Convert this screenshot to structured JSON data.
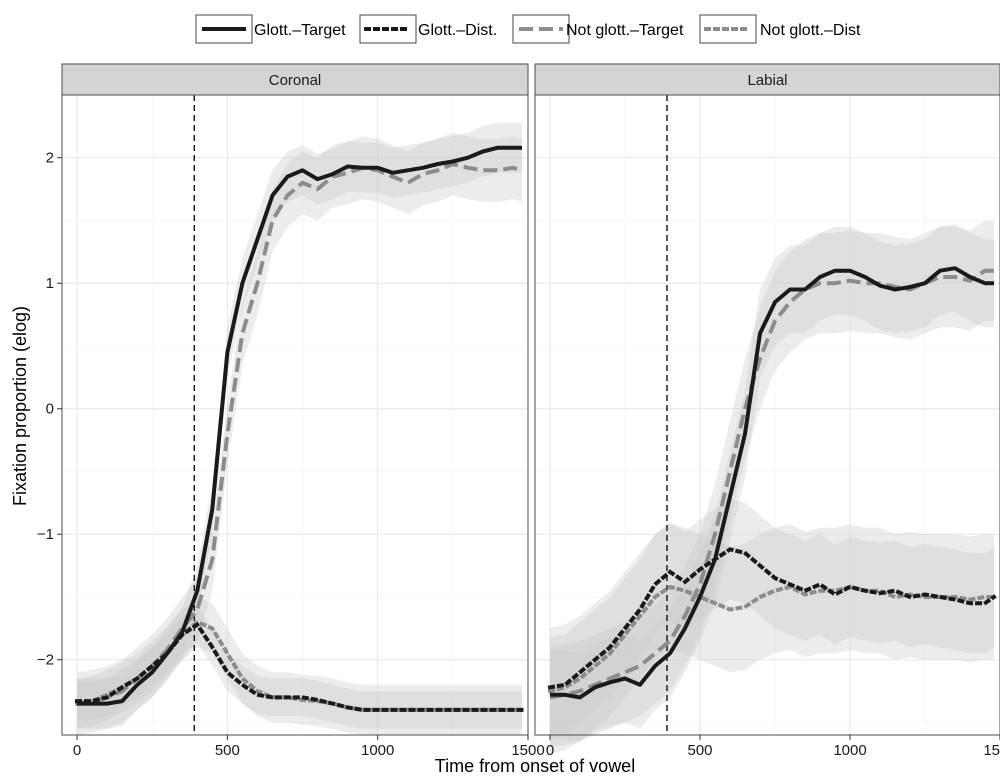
{
  "chart_data": {
    "type": "line",
    "xlabel": "Time from onset of vowel",
    "ylabel": "Fixation proportion (elog)",
    "xlim": [
      -50,
      1500
    ],
    "ylim": [
      -2.6,
      2.5
    ],
    "x_ticks": [
      0,
      500,
      1000,
      1500
    ],
    "y_ticks": [
      -2,
      -1,
      0,
      1,
      2
    ],
    "x_tick_labels": [
      "0",
      "500",
      "1000",
      "1500"
    ],
    "y_tick_labels": [
      "−2",
      "−1",
      "0",
      "1",
      "2"
    ],
    "grid": true,
    "legend_position": "top",
    "legend": [
      {
        "label": "Glott.–Target",
        "color": "#1a1a1a",
        "style": "solid"
      },
      {
        "label": "Glott.–Dist.",
        "color": "#1a1a1a",
        "style": "dotted"
      },
      {
        "label": "Not glott.–Target",
        "color": "#8c8c8c",
        "style": "dashed"
      },
      {
        "label": "Not glott.–Dist",
        "color": "#8c8c8c",
        "style": "dotted"
      }
    ],
    "panels": [
      {
        "title": "Coronal",
        "vline_x": 390,
        "series": [
          {
            "name": "Glott.–Target",
            "x": [
              0,
              50,
              100,
              150,
              200,
              250,
              300,
              350,
              400,
              450,
              500,
              550,
              600,
              650,
              700,
              750,
              800,
              850,
              900,
              950,
              1000,
              1050,
              1100,
              1150,
              1200,
              1250,
              1300,
              1350,
              1400,
              1450,
              1480
            ],
            "y": [
              -2.35,
              -2.35,
              -2.35,
              -2.33,
              -2.2,
              -2.1,
              -1.95,
              -1.78,
              -1.45,
              -0.8,
              0.45,
              1.0,
              1.35,
              1.7,
              1.85,
              1.9,
              1.83,
              1.87,
              1.93,
              1.92,
              1.92,
              1.88,
              1.9,
              1.92,
              1.95,
              1.97,
              2.0,
              2.05,
              2.08,
              2.08,
              2.08
            ],
            "band": 0.2
          },
          {
            "name": "Glott.–Dist.",
            "x": [
              0,
              50,
              100,
              150,
              200,
              250,
              300,
              350,
              400,
              450,
              500,
              550,
              600,
              650,
              700,
              750,
              800,
              850,
              900,
              950,
              1000,
              1050,
              1100,
              1150,
              1200,
              1250,
              1300,
              1350,
              1400,
              1450,
              1480
            ],
            "y": [
              -2.33,
              -2.33,
              -2.3,
              -2.22,
              -2.15,
              -2.05,
              -1.95,
              -1.8,
              -1.72,
              -1.9,
              -2.1,
              -2.2,
              -2.28,
              -2.3,
              -2.3,
              -2.3,
              -2.32,
              -2.35,
              -2.38,
              -2.4,
              -2.4,
              -2.4,
              -2.4,
              -2.4,
              -2.4,
              -2.4,
              -2.4,
              -2.4,
              -2.4,
              -2.4,
              -2.4
            ],
            "band": 0.15
          },
          {
            "name": "Not glott.–Target",
            "x": [
              0,
              50,
              100,
              150,
              200,
              250,
              300,
              350,
              400,
              450,
              500,
              550,
              600,
              650,
              700,
              750,
              800,
              850,
              900,
              950,
              1000,
              1050,
              1100,
              1150,
              1200,
              1250,
              1300,
              1350,
              1400,
              1450,
              1480
            ],
            "y": [
              -2.35,
              -2.33,
              -2.3,
              -2.25,
              -2.15,
              -2.05,
              -1.92,
              -1.75,
              -1.6,
              -1.2,
              -0.2,
              0.6,
              1.0,
              1.5,
              1.7,
              1.8,
              1.75,
              1.85,
              1.88,
              1.92,
              1.9,
              1.85,
              1.8,
              1.87,
              1.9,
              1.95,
              1.92,
              1.9,
              1.9,
              1.92,
              1.9
            ],
            "band": 0.25
          },
          {
            "name": "Not glott.–Dist",
            "x": [
              0,
              50,
              100,
              150,
              200,
              250,
              300,
              350,
              400,
              450,
              500,
              550,
              600,
              650,
              700,
              750,
              800,
              850,
              900,
              950,
              1000,
              1050,
              1100,
              1150,
              1200,
              1250,
              1300,
              1350,
              1400,
              1450,
              1480
            ],
            "y": [
              -2.35,
              -2.33,
              -2.28,
              -2.22,
              -2.15,
              -2.05,
              -1.93,
              -1.8,
              -1.7,
              -1.75,
              -1.95,
              -2.15,
              -2.25,
              -2.3,
              -2.3,
              -2.32,
              -2.33,
              -2.35,
              -2.38,
              -2.4,
              -2.4,
              -2.4,
              -2.4,
              -2.4,
              -2.4,
              -2.4,
              -2.4,
              -2.4,
              -2.4,
              -2.4,
              -2.4
            ],
            "band": 0.2
          }
        ]
      },
      {
        "title": "Labial",
        "vline_x": 390,
        "series": [
          {
            "name": "Glott.–Target",
            "x": [
              0,
              50,
              100,
              150,
              200,
              250,
              300,
              350,
              400,
              450,
              500,
              550,
              600,
              650,
              700,
              750,
              800,
              850,
              900,
              950,
              1000,
              1050,
              1100,
              1150,
              1200,
              1250,
              1300,
              1350,
              1400,
              1450,
              1480
            ],
            "y": [
              -2.28,
              -2.28,
              -2.3,
              -2.22,
              -2.18,
              -2.15,
              -2.2,
              -2.05,
              -1.95,
              -1.75,
              -1.5,
              -1.2,
              -0.7,
              -0.2,
              0.6,
              0.85,
              0.95,
              0.95,
              1.05,
              1.1,
              1.1,
              1.05,
              0.98,
              0.95,
              0.97,
              1.0,
              1.1,
              1.12,
              1.05,
              1.0,
              1.0
            ],
            "band": 0.35
          },
          {
            "name": "Glott.–Dist.",
            "x": [
              0,
              50,
              100,
              150,
              200,
              250,
              300,
              350,
              400,
              450,
              500,
              550,
              600,
              650,
              700,
              750,
              800,
              850,
              900,
              950,
              1000,
              1050,
              1100,
              1150,
              1200,
              1250,
              1300,
              1350,
              1400,
              1450,
              1480
            ],
            "y": [
              -2.22,
              -2.2,
              -2.1,
              -2.0,
              -1.9,
              -1.75,
              -1.6,
              -1.4,
              -1.3,
              -1.38,
              -1.28,
              -1.2,
              -1.12,
              -1.15,
              -1.25,
              -1.35,
              -1.4,
              -1.45,
              -1.4,
              -1.48,
              -1.42,
              -1.45,
              -1.47,
              -1.45,
              -1.5,
              -1.48,
              -1.5,
              -1.52,
              -1.55,
              -1.55,
              -1.5
            ],
            "band": 0.4
          },
          {
            "name": "Not glott.–Target",
            "x": [
              0,
              50,
              100,
              150,
              200,
              250,
              300,
              350,
              400,
              450,
              500,
              550,
              600,
              650,
              700,
              750,
              800,
              850,
              900,
              950,
              1000,
              1050,
              1100,
              1150,
              1200,
              1250,
              1300,
              1350,
              1400,
              1450,
              1480
            ],
            "y": [
              -2.3,
              -2.28,
              -2.25,
              -2.2,
              -2.15,
              -2.1,
              -2.05,
              -1.95,
              -1.85,
              -1.65,
              -1.4,
              -1.0,
              -0.5,
              0.0,
              0.4,
              0.7,
              0.85,
              0.95,
              1.0,
              1.0,
              1.02,
              1.0,
              1.0,
              0.97,
              0.95,
              1.0,
              1.05,
              1.05,
              1.02,
              1.1,
              1.1
            ],
            "band": 0.4
          },
          {
            "name": "Not glott.–Dist",
            "x": [
              0,
              50,
              100,
              150,
              200,
              250,
              300,
              350,
              400,
              450,
              500,
              550,
              600,
              650,
              700,
              750,
              800,
              850,
              900,
              950,
              1000,
              1050,
              1100,
              1150,
              1200,
              1250,
              1300,
              1350,
              1400,
              1450,
              1480
            ],
            "y": [
              -2.25,
              -2.22,
              -2.15,
              -2.05,
              -1.95,
              -1.8,
              -1.65,
              -1.5,
              -1.42,
              -1.45,
              -1.5,
              -1.55,
              -1.6,
              -1.58,
              -1.5,
              -1.45,
              -1.42,
              -1.48,
              -1.45,
              -1.45,
              -1.42,
              -1.45,
              -1.45,
              -1.5,
              -1.48,
              -1.5,
              -1.5,
              -1.5,
              -1.52,
              -1.5,
              -1.5
            ],
            "band": 0.5
          }
        ]
      }
    ]
  }
}
